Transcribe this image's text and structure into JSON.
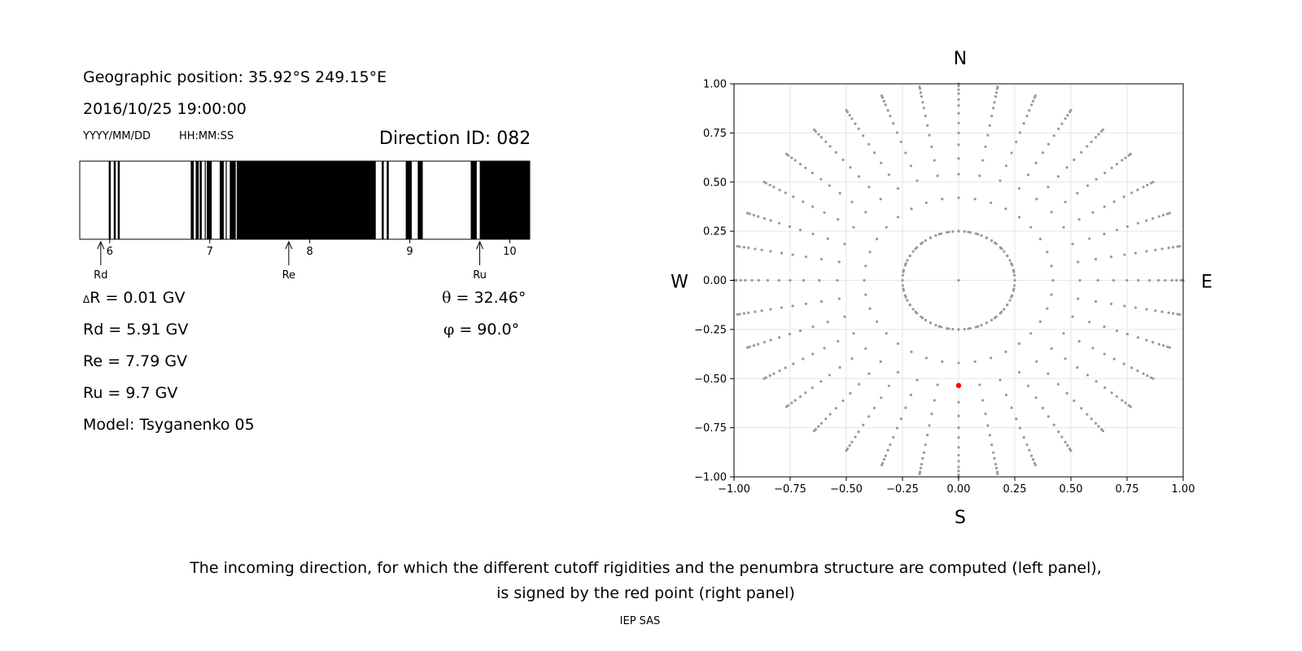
{
  "info": {
    "position": "Geographic position: 35.92°S 249.15°E",
    "datetime": "2016/10/25 19:00:00",
    "date_format": "YYYY/MM/DD",
    "time_format": "HH:MM:SS",
    "direction": "Direction ID: 082",
    "delta_r_sym": "Δ",
    "delta_r": "R = 0.01 GV",
    "rd": "Rd = 5.91 GV",
    "re": "Re = 7.79 GV",
    "ru": "Ru = 9.7 GV",
    "model": "Model: Tsyganenko 05",
    "theta_sym": "θ",
    "theta": " = 32.46°",
    "phi_sym": "φ",
    "phi": " = 90.0°"
  },
  "caption": {
    "line1": "The incoming direction, for which the different cutoff rigidities and the penumbra structure are computed (left panel),",
    "line2": "is signed by the red point (right panel)",
    "credit": "IEP SAS"
  },
  "chart_data": [
    {
      "type": "penumbra",
      "xlim": [
        5.7,
        10.2
      ],
      "ticks": [
        "6",
        "7",
        "8",
        "9",
        "10"
      ],
      "tick_values": [
        6,
        7,
        8,
        9,
        10
      ],
      "markers": [
        {
          "label": "Rd",
          "value": 5.91
        },
        {
          "label": "Re",
          "value": 7.79
        },
        {
          "label": "Ru",
          "value": 9.7
        }
      ],
      "forbidden_bands": [
        [
          5.99,
          6.01
        ],
        [
          6.04,
          6.06
        ],
        [
          6.08,
          6.1
        ],
        [
          6.81,
          6.84
        ],
        [
          6.86,
          6.89
        ],
        [
          6.9,
          6.92
        ],
        [
          6.95,
          6.96
        ],
        [
          6.97,
          7.02
        ],
        [
          7.1,
          7.14
        ],
        [
          7.16,
          7.17
        ],
        [
          7.2,
          7.26
        ],
        [
          7.27,
          8.66
        ],
        [
          8.72,
          8.74
        ],
        [
          8.77,
          8.79
        ],
        [
          8.96,
          9.02
        ],
        [
          9.08,
          9.13
        ],
        [
          9.61,
          9.67
        ],
        [
          9.7,
          10.2
        ]
      ]
    },
    {
      "type": "scatter",
      "compass": {
        "n": "N",
        "s": "S",
        "w": "W",
        "e": "E"
      },
      "xlim": [
        -1,
        1
      ],
      "ylim": [
        -1,
        1
      ],
      "ticks": [
        "−1.00",
        "−0.75",
        "−0.50",
        "−0.25",
        "0.00",
        "0.25",
        "0.50",
        "0.75",
        "1.00"
      ],
      "tick_values": [
        -1,
        -0.75,
        -0.5,
        -0.25,
        0,
        0.25,
        0.5,
        0.75,
        1
      ],
      "grid": true,
      "ring_radii": [
        0.25,
        0.42,
        0.54,
        0.62,
        0.69,
        0.75,
        0.8,
        0.85,
        0.89,
        0.92,
        0.95,
        0.97,
        0.99,
        1.0
      ],
      "spokes_deg": [
        0,
        10,
        20,
        30,
        40,
        50,
        60,
        70,
        80,
        90,
        100,
        110,
        120,
        130,
        140,
        150,
        160,
        170,
        180,
        190,
        200,
        210,
        220,
        230,
        240,
        250,
        260,
        270,
        280,
        290,
        300,
        310,
        320,
        330,
        340,
        350
      ],
      "point_color": "#999999",
      "highlight": {
        "x": 0.0,
        "y": -0.535,
        "color": "#ff0000"
      }
    }
  ]
}
